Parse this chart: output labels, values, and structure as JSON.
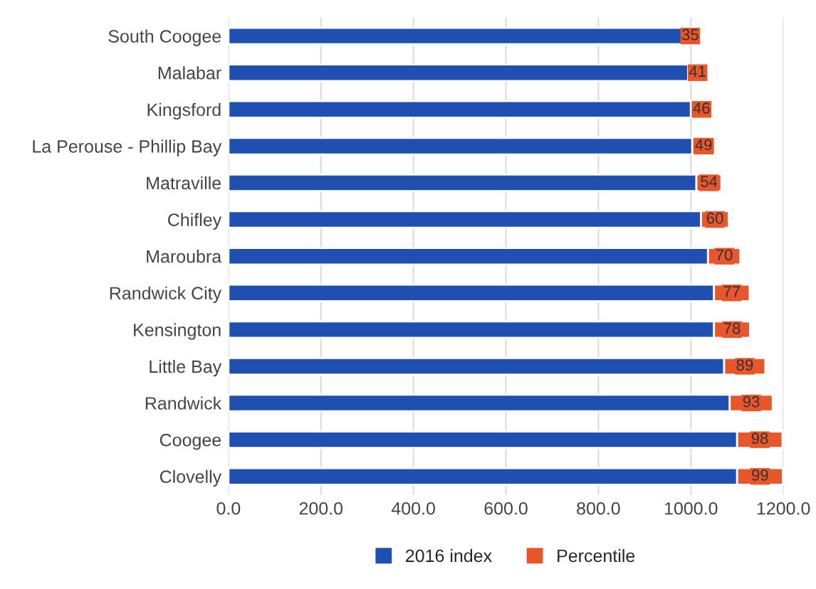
{
  "chart_data": {
    "type": "bar",
    "orientation": "horizontal",
    "stacked": true,
    "categories": [
      "South Coogee",
      "Malabar",
      "Kingsford",
      "La Perouse - Phillip Bay",
      "Matraville",
      "Chifley",
      "Maroubra",
      "Randwick City",
      "Kensington",
      "Little Bay",
      "Randwick",
      "Coogee",
      "Clovelly"
    ],
    "series": [
      {
        "name": "2016 index",
        "color": "#1f4fb0",
        "values": [
          981,
          994,
          1000,
          1003,
          1012,
          1022,
          1037,
          1050,
          1050,
          1072,
          1084,
          1100,
          1100
        ]
      },
      {
        "name": "Percentile",
        "color": "#e8562a",
        "values": [
          35,
          41,
          46,
          49,
          54,
          60,
          70,
          77,
          78,
          89,
          93,
          98,
          99
        ],
        "value_labels": [
          "35",
          "41",
          "46",
          "49",
          "54",
          "60",
          "70",
          "77",
          "78",
          "89",
          "93",
          "98",
          "99"
        ]
      }
    ],
    "xlim": [
      0,
      1200
    ],
    "xticks": [
      {
        "value": 0,
        "label": "0.0"
      },
      {
        "value": 200,
        "label": "200.0"
      },
      {
        "value": 400,
        "label": "400.0"
      },
      {
        "value": 600,
        "label": "600.0"
      },
      {
        "value": 800,
        "label": "800.0"
      },
      {
        "value": 1000,
        "label": "1000.0"
      },
      {
        "value": 1200,
        "label": "1200.0"
      }
    ],
    "grid": "x",
    "legend": "bottom"
  }
}
